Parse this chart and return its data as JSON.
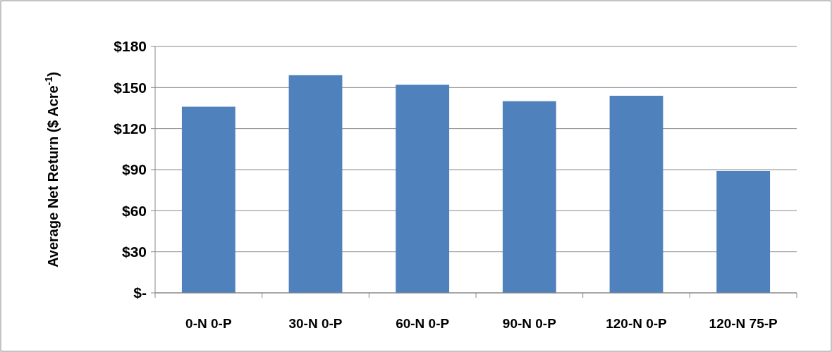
{
  "chart_data": {
    "type": "bar",
    "ylabel": "Average Net Return ($ Acre$^{-1}$)",
    "categories": [
      "0-N 0-P",
      "30-N 0-P",
      "60-N 0-P",
      "90-N 0-P",
      "120-N 0-P",
      "120-N 75-P"
    ],
    "values": [
      136,
      159,
      152,
      140,
      144,
      89
    ],
    "color": "#4f81bd",
    "ylim": [
      0,
      180
    ],
    "yticks": [
      {
        "value": 0,
        "label": "$-"
      },
      {
        "value": 30,
        "label": "$30"
      },
      {
        "value": 60,
        "label": "$60"
      },
      {
        "value": 90,
        "label": "$90"
      },
      {
        "value": 120,
        "label": "$120"
      },
      {
        "value": 150,
        "label": "$150"
      },
      {
        "value": 180,
        "label": "$180"
      }
    ],
    "grid": "y"
  }
}
